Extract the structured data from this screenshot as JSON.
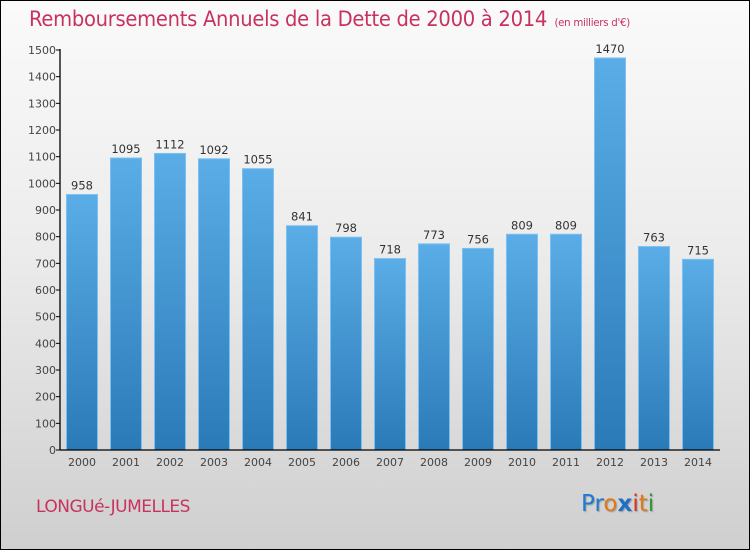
{
  "header": {
    "title": "Remboursements Annuels de la Dette de 2000 à 2014",
    "unit_note": "(en milliers d'€)"
  },
  "footer": {
    "city": "LONGUé-JUMELLES",
    "logo": {
      "letters": [
        {
          "char": "P",
          "color": "#1f7ad1"
        },
        {
          "char": "r",
          "color": "#1f7ad1"
        },
        {
          "char": "o",
          "color": "#e07a16"
        },
        {
          "char": "x",
          "color": "#1f6fc9"
        },
        {
          "char": "i",
          "color": "#d8341c"
        },
        {
          "char": "t",
          "color": "#e07a16"
        },
        {
          "char": "i",
          "color": "#2e9a3a"
        }
      ]
    }
  },
  "colors": {
    "title": "#c8325f",
    "bar_top": "#5aade6",
    "bar_bottom": "#2a7ab8",
    "bar_edge": "#7cc0f0",
    "axis": "#000000"
  },
  "chart_data": {
    "type": "bar",
    "title": "Remboursements Annuels de la Dette de 2000 à 2014",
    "subtitle": "(en milliers d'€)",
    "xlabel": "",
    "ylabel": "",
    "categories": [
      "2000",
      "2001",
      "2002",
      "2003",
      "2004",
      "2005",
      "2006",
      "2007",
      "2008",
      "2009",
      "2010",
      "2011",
      "2012",
      "2013",
      "2014"
    ],
    "values": [
      958,
      1095,
      1112,
      1092,
      1055,
      841,
      798,
      718,
      773,
      756,
      809,
      809,
      1470,
      763,
      715
    ],
    "ylim": [
      0,
      1500
    ],
    "yticks": [
      0,
      100,
      200,
      300,
      400,
      500,
      600,
      700,
      800,
      900,
      1000,
      1100,
      1200,
      1300,
      1400,
      1500
    ],
    "grid": false,
    "legend": "none",
    "data_labels": true
  }
}
